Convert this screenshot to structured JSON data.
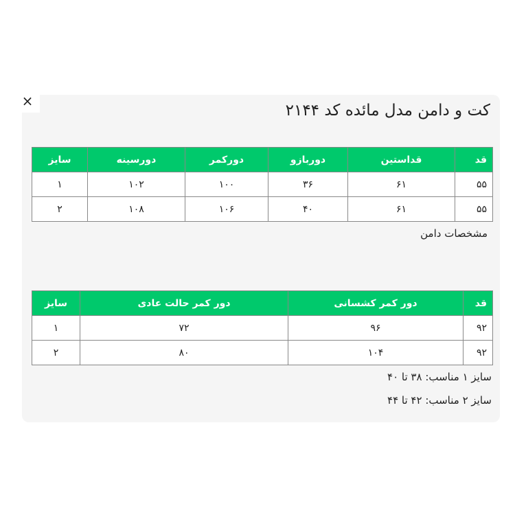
{
  "title": "کت و دامن مدل مائده کد ۲۱۴۴",
  "close_icon": "×",
  "jacket_table": {
    "headers": [
      "قد",
      "قداستین",
      "دوربازو",
      "دورکمر",
      "دورسینه",
      "سایز"
    ],
    "rows": [
      [
        "۵۵",
        "۶۱",
        "۳۶",
        "۱۰۰",
        "۱۰۲",
        "۱"
      ],
      [
        "۵۵",
        "۶۱",
        "۴۰",
        "۱۰۶",
        "۱۰۸",
        "۲"
      ]
    ]
  },
  "skirt_label": "مشخصات دامن",
  "skirt_table": {
    "headers": [
      "قد",
      "دور کمر کشسانی",
      "دور کمر حالت عادی",
      "سایز"
    ],
    "rows": [
      [
        "۹۲",
        "۹۶",
        "۷۲",
        "۱"
      ],
      [
        "۹۲",
        "۱۰۴",
        "۸۰",
        "۲"
      ]
    ]
  },
  "notes": [
    "سایز ۱ مناسب: ۳۸ تا ۴۰",
    "سایز ۲ مناسب: ۴۲ تا ۴۴"
  ],
  "colors": {
    "header_green": "#00c96c",
    "panel_bg": "#f5f5f5"
  }
}
